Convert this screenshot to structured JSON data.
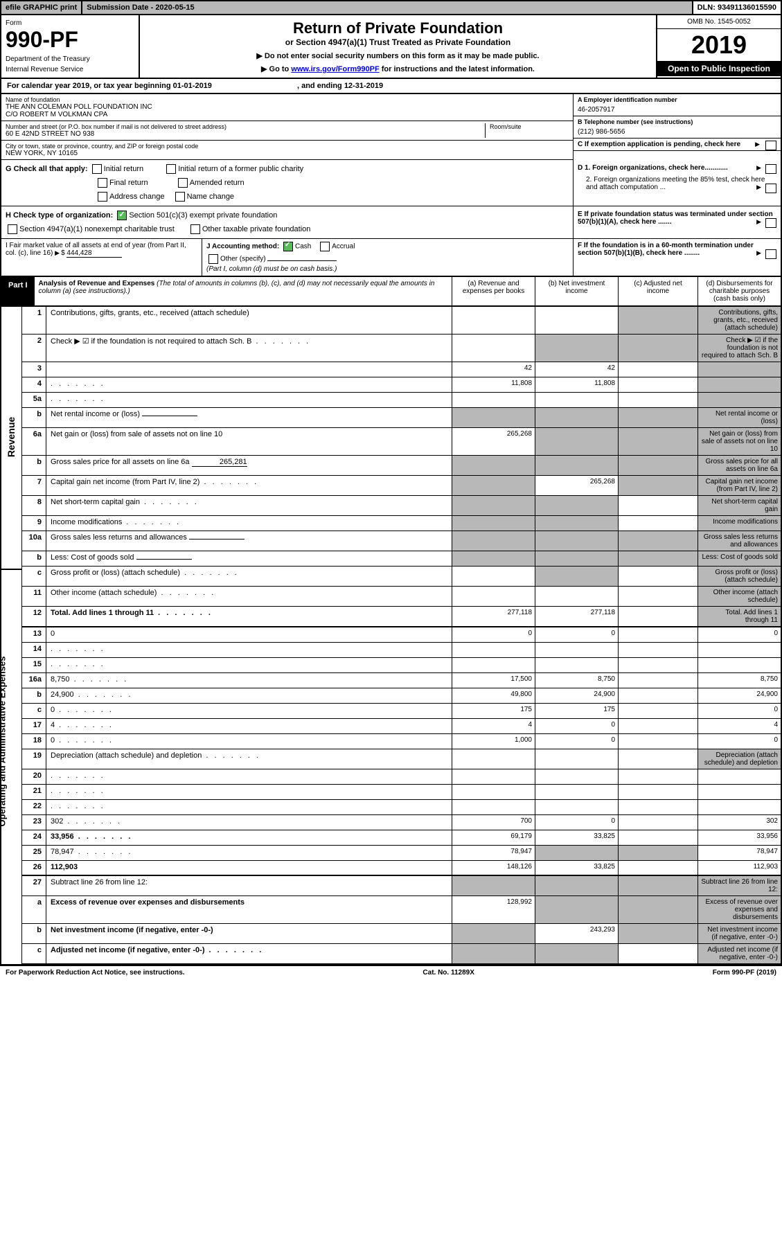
{
  "topbar": {
    "efile": "efile GRAPHIC print",
    "subdate_lbl": "Submission Date - 2020-05-15",
    "dln": "DLN: 93491136015590"
  },
  "header": {
    "form_lbl": "Form",
    "form_num": "990-PF",
    "dept": "Department of the Treasury",
    "irs": "Internal Revenue Service",
    "title": "Return of Private Foundation",
    "subtitle": "or Section 4947(a)(1) Trust Treated as Private Foundation",
    "note1": "▶ Do not enter social security numbers on this form as it may be made public.",
    "note2_pre": "▶ Go to ",
    "note2_link": "www.irs.gov/Form990PF",
    "note2_post": " for instructions and the latest information.",
    "omb": "OMB No. 1545-0052",
    "year": "2019",
    "open": "Open to Public Inspection"
  },
  "cal": {
    "text": "For calendar year 2019, or tax year beginning 01-01-2019",
    "end": ", and ending 12-31-2019"
  },
  "info": {
    "name_lbl": "Name of foundation",
    "name": "THE ANN COLEMAN POLL FOUNDATION INC",
    "name2": "C/O ROBERT M VOLKMAN CPA",
    "addr_lbl": "Number and street (or P.O. box number if mail is not delivered to street address)",
    "addr": "60 E 42ND STREET NO 938",
    "room_lbl": "Room/suite",
    "city_lbl": "City or town, state or province, country, and ZIP or foreign postal code",
    "city": "NEW YORK, NY  10165",
    "ein_lbl": "A Employer identification number",
    "ein": "46-2057917",
    "tel_lbl": "B Telephone number (see instructions)",
    "tel": "(212) 986-5656",
    "c_lbl": "C If exemption application is pending, check here",
    "d1": "D 1. Foreign organizations, check here............",
    "d2": "2. Foreign organizations meeting the 85% test, check here and attach computation ...",
    "e_lbl": "E  If private foundation status was terminated under section 507(b)(1)(A), check here .......",
    "f_lbl": "F  If the foundation is in a 60-month termination under section 507(b)(1)(B), check here ........"
  },
  "g": {
    "lbl": "G Check all that apply:",
    "o1": "Initial return",
    "o2": "Initial return of a former public charity",
    "o3": "Final return",
    "o4": "Amended return",
    "o5": "Address change",
    "o6": "Name change"
  },
  "h": {
    "lbl": "H Check type of organization:",
    "o1": "Section 501(c)(3) exempt private foundation",
    "o2": "Section 4947(a)(1) nonexempt charitable trust",
    "o3": "Other taxable private foundation"
  },
  "i": {
    "lbl": "I Fair market value of all assets at end of year (from Part II, col. (c), line 16)",
    "val": "444,428"
  },
  "j": {
    "lbl": "J Accounting method:",
    "o1": "Cash",
    "o2": "Accrual",
    "o3": "Other (specify)",
    "note": "(Part I, column (d) must be on cash basis.)"
  },
  "part1": {
    "lbl": "Part I",
    "title": "Analysis of Revenue and Expenses",
    "title_note": "(The total of amounts in columns (b), (c), and (d) may not necessarily equal the amounts in column (a) (see instructions).)",
    "colA": "(a)    Revenue and expenses per books",
    "colB": "(b)   Net investment income",
    "colC": "(c)   Adjusted net income",
    "colD": "(d)   Disbursements for charitable purposes (cash basis only)"
  },
  "side": {
    "rev": "Revenue",
    "exp": "Operating and Administrative Expenses"
  },
  "rows": [
    {
      "n": "1",
      "d": "Contributions, gifts, grants, etc., received (attach schedule)",
      "a": "",
      "b": "",
      "cS": true,
      "dS": true
    },
    {
      "n": "2",
      "d": "Check ▶ ☑ if the foundation is not required to attach Sch. B",
      "a": "",
      "b": "",
      "bS": true,
      "cS": true,
      "dS": true,
      "dots": true
    },
    {
      "n": "3",
      "d": "",
      "a": "42",
      "b": "42",
      "c": "",
      "dS": true
    },
    {
      "n": "4",
      "d": "",
      "a": "11,808",
      "b": "11,808",
      "c": "",
      "dS": true,
      "dots": true
    },
    {
      "n": "5a",
      "d": "",
      "a": "",
      "b": "",
      "c": "",
      "dS": true,
      "dots": true
    },
    {
      "n": "b",
      "d": "Net rental income or (loss)",
      "a": "",
      "aS": true,
      "bS": true,
      "cS": true,
      "dS": true,
      "inline": true
    },
    {
      "n": "6a",
      "d": "Net gain or (loss) from sale of assets not on line 10",
      "a": "265,268",
      "bS": true,
      "cS": true,
      "dS": true
    },
    {
      "n": "b",
      "d": "Gross sales price for all assets on line 6a",
      "a": "",
      "aS": true,
      "bS": true,
      "cS": true,
      "dS": true,
      "inline": true,
      "inlineVal": "265,281"
    },
    {
      "n": "7",
      "d": "Capital gain net income (from Part IV, line 2)",
      "aS": true,
      "b": "265,268",
      "cS": true,
      "dS": true,
      "dots": true
    },
    {
      "n": "8",
      "d": "Net short-term capital gain",
      "aS": true,
      "bS": true,
      "c": "",
      "dS": true,
      "dots": true
    },
    {
      "n": "9",
      "d": "Income modifications",
      "aS": true,
      "bS": true,
      "c": "",
      "dS": true,
      "dots": true
    },
    {
      "n": "10a",
      "d": "Gross sales less returns and allowances",
      "aS": true,
      "bS": true,
      "cS": true,
      "dS": true,
      "inline": true
    },
    {
      "n": "b",
      "d": "Less: Cost of goods sold",
      "aS": true,
      "bS": true,
      "cS": true,
      "dS": true,
      "inline": true,
      "dots": true
    },
    {
      "n": "c",
      "d": "Gross profit or (loss) (attach schedule)",
      "a": "",
      "bS": true,
      "c": "",
      "dS": true,
      "dots": true
    },
    {
      "n": "11",
      "d": "Other income (attach schedule)",
      "a": "",
      "b": "",
      "c": "",
      "dS": true,
      "dots": true
    },
    {
      "n": "12",
      "d": "Total. Add lines 1 through 11",
      "a": "277,118",
      "b": "277,118",
      "c": "",
      "dS": true,
      "bold": true,
      "dots": true,
      "dbl": true
    }
  ],
  "exprows": [
    {
      "n": "13",
      "d": "0",
      "a": "0",
      "b": "0",
      "c": ""
    },
    {
      "n": "14",
      "d": "",
      "a": "",
      "b": "",
      "c": "",
      "dots": true
    },
    {
      "n": "15",
      "d": "",
      "a": "",
      "b": "",
      "c": "",
      "dots": true
    },
    {
      "n": "16a",
      "d": "8,750",
      "a": "17,500",
      "b": "8,750",
      "c": "",
      "dots": true
    },
    {
      "n": "b",
      "d": "24,900",
      "a": "49,800",
      "b": "24,900",
      "c": "",
      "dots": true
    },
    {
      "n": "c",
      "d": "0",
      "a": "175",
      "b": "175",
      "c": "",
      "dots": true
    },
    {
      "n": "17",
      "d": "4",
      "a": "4",
      "b": "0",
      "c": "",
      "dots": true
    },
    {
      "n": "18",
      "d": "0",
      "a": "1,000",
      "b": "0",
      "c": "",
      "dots": true
    },
    {
      "n": "19",
      "d": "Depreciation (attach schedule) and depletion",
      "a": "",
      "b": "",
      "c": "",
      "dS": true,
      "dots": true
    },
    {
      "n": "20",
      "d": "",
      "a": "",
      "b": "",
      "c": "",
      "dots": true
    },
    {
      "n": "21",
      "d": "",
      "a": "",
      "b": "",
      "c": "",
      "dots": true
    },
    {
      "n": "22",
      "d": "",
      "a": "",
      "b": "",
      "c": "",
      "dots": true
    },
    {
      "n": "23",
      "d": "302",
      "a": "700",
      "b": "0",
      "c": "",
      "dots": true
    },
    {
      "n": "24",
      "d": "33,956",
      "a": "69,179",
      "b": "33,825",
      "c": "",
      "bold": true,
      "dots": true
    },
    {
      "n": "25",
      "d": "78,947",
      "a": "78,947",
      "bS": true,
      "cS": true,
      "dots": true
    },
    {
      "n": "26",
      "d": "112,903",
      "a": "148,126",
      "b": "33,825",
      "c": "",
      "bold": true,
      "dbl": true
    },
    {
      "n": "27",
      "d": "Subtract line 26 from line 12:",
      "aS": true,
      "bS": true,
      "cS": true,
      "dS": true
    },
    {
      "n": "a",
      "d": "Excess of revenue over expenses and disbursements",
      "a": "128,992",
      "bS": true,
      "cS": true,
      "dS": true,
      "bold": true
    },
    {
      "n": "b",
      "d": "Net investment income (if negative, enter -0-)",
      "aS": true,
      "b": "243,293",
      "cS": true,
      "dS": true,
      "bold": true
    },
    {
      "n": "c",
      "d": "Adjusted net income (if negative, enter -0-)",
      "aS": true,
      "bS": true,
      "c": "",
      "dS": true,
      "bold": true,
      "dots": true
    }
  ],
  "footer": {
    "left": "For Paperwork Reduction Act Notice, see instructions.",
    "mid": "Cat. No. 11289X",
    "right": "Form 990-PF (2019)"
  },
  "colors": {
    "shade": "#b8b8b8",
    "check": "#5bb85b",
    "link": "#0000cc"
  }
}
